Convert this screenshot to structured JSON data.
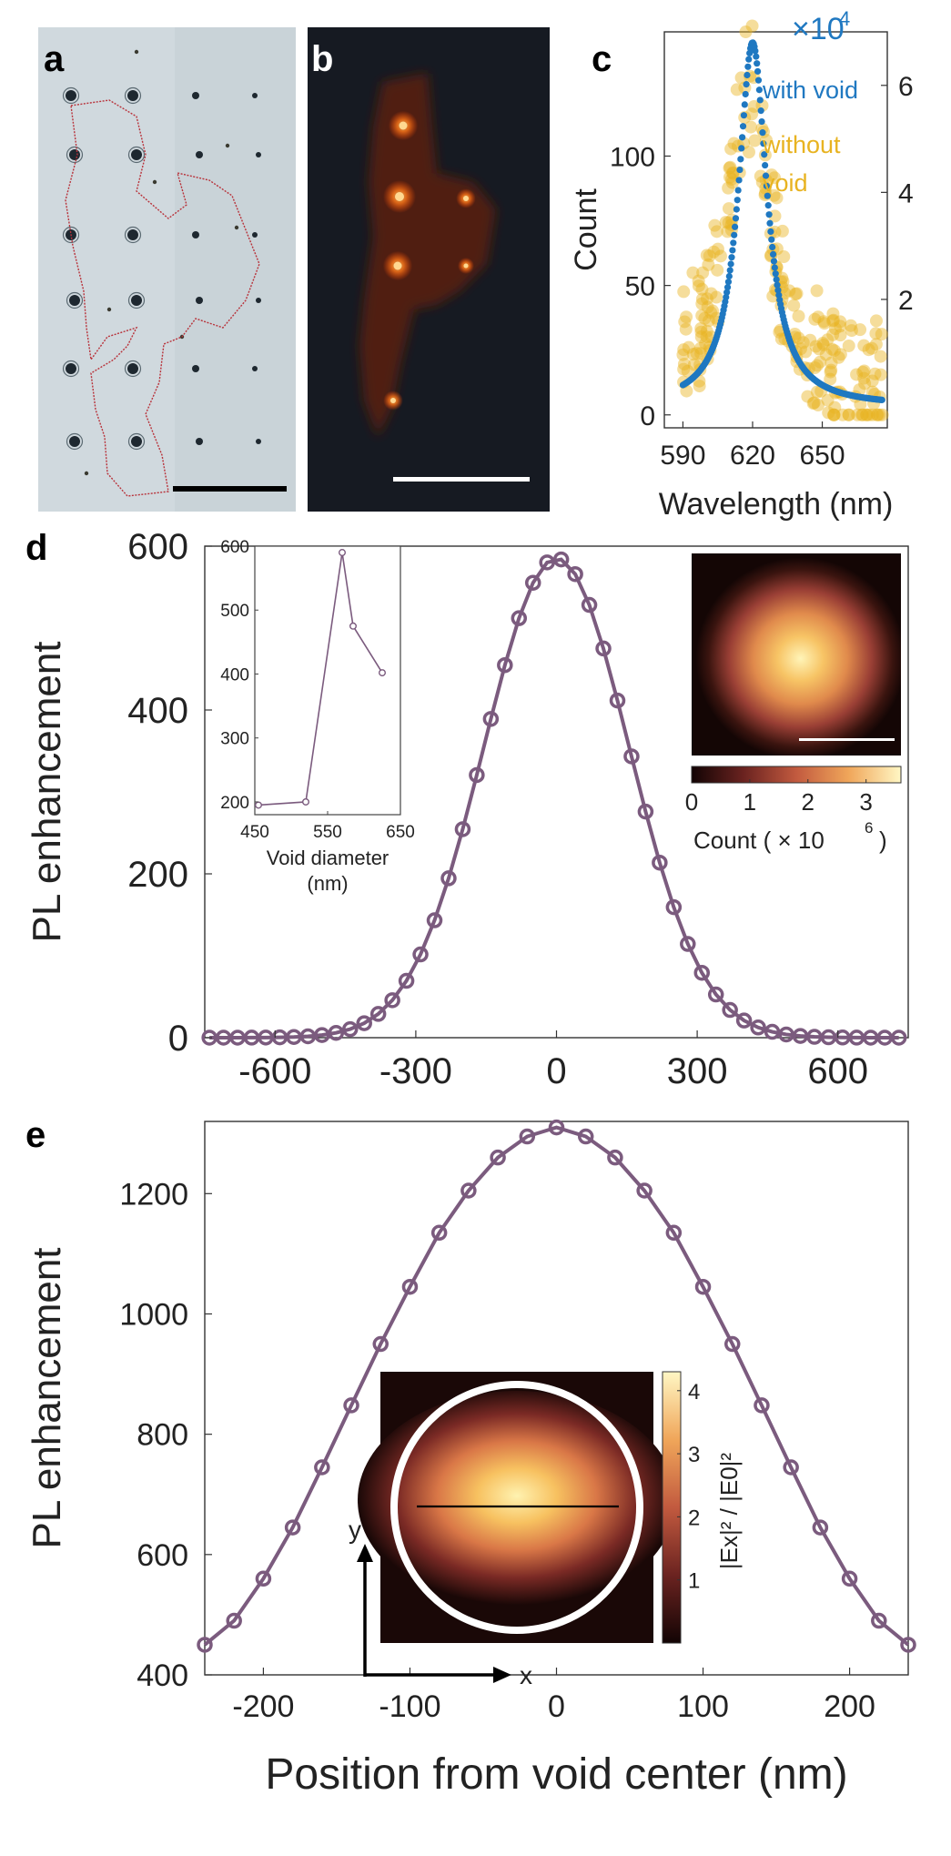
{
  "figure": {
    "panel_letters": [
      "a",
      "b",
      "c",
      "d",
      "e"
    ],
    "colors": {
      "curve": "#7b5b7e",
      "with_void": "#1f78c1",
      "without_void": "#e8b321",
      "axis_right": "#1f78c1",
      "axis_left_c": "#e8b321"
    }
  },
  "panel_a": {
    "description_icon": "microscope-brightfield-image"
  },
  "panel_b": {
    "description_icon": "fluorescence-image"
  },
  "chart_data": [
    {
      "id": "c",
      "type": "scatter",
      "xlabel": "Wavelength (nm)",
      "ylabel": "Count",
      "xlim": [
        582,
        678
      ],
      "ylim": [
        -5,
        148
      ],
      "xticks": [
        "590",
        "620",
        "650"
      ],
      "xtick_values": [
        590,
        620,
        650
      ],
      "yticks": [
        "0",
        "50",
        "100"
      ],
      "ytick_values": [
        0,
        50,
        100
      ],
      "y2lim": [
        -0.4,
        7.0
      ],
      "y2ticks": [
        "2",
        "4",
        "6"
      ],
      "y2tick_values": [
        2,
        4,
        6
      ],
      "y2_multiplier": "×10",
      "y2_exponent": "4",
      "legend": {
        "with_void": "with void",
        "without_void_1": "without",
        "without_void_2": "void"
      },
      "series": [
        {
          "name": "with void",
          "axis": "right",
          "model": "lorentzian",
          "center": 620,
          "gamma": 7.5,
          "peak": 6.8,
          "x_start": 590,
          "x_end": 676
        },
        {
          "name": "without void",
          "axis": "left",
          "model": "noisy-lorentzian",
          "center": 618,
          "gamma": 11,
          "peak": 120,
          "x_start": 590,
          "x_end": 676
        }
      ]
    },
    {
      "id": "d",
      "type": "line",
      "xlabel": "",
      "ylabel": "PL enhancement",
      "xlim": [
        -750,
        750
      ],
      "ylim": [
        0,
        600
      ],
      "xticks": [
        "-600",
        "-300",
        "0",
        "300",
        "600"
      ],
      "xtick_values": [
        -600,
        -300,
        0,
        300,
        600
      ],
      "yticks": [
        "0",
        "200",
        "400",
        "600"
      ],
      "ytick_values": [
        0,
        200,
        400,
        600
      ],
      "series": [
        {
          "name": "PL enhancement",
          "model": "gaussian",
          "peak": 585,
          "sigma": 155,
          "x_start": -740,
          "x_step": 30,
          "n": 50
        }
      ],
      "inset_left": {
        "xlabel_1": "Void diameter",
        "xlabel_2": "(nm)",
        "xlim": [
          450,
          650
        ],
        "ylim": [
          180,
          600
        ],
        "xticks": [
          "450",
          "550",
          "650"
        ],
        "xtick_values": [
          450,
          550,
          650
        ],
        "yticks": [
          "200",
          "300",
          "400",
          "500",
          "600"
        ],
        "ytick_values": [
          200,
          300,
          400,
          500,
          600
        ],
        "x": [
          455,
          520,
          570,
          585,
          625
        ],
        "y": [
          195,
          200,
          590,
          475,
          402
        ]
      },
      "inset_right": {
        "colorbar_ticks": [
          "0",
          "1",
          "2",
          "3"
        ],
        "colorbar_tick_values": [
          0,
          1,
          2,
          3
        ],
        "colorbar_max": 3.6,
        "colorbar_label": "Count ( × 10",
        "colorbar_label_exp": "6",
        "colorbar_label_end": ")"
      }
    },
    {
      "id": "e",
      "type": "line",
      "xlabel": "Position from void center (nm)",
      "ylabel": "PL enhancement",
      "xlim": [
        -240,
        240
      ],
      "ylim": [
        400,
        1320
      ],
      "xticks": [
        "-200",
        "-100",
        "0",
        "100",
        "200"
      ],
      "xtick_values": [
        -200,
        -100,
        0,
        100,
        200
      ],
      "yticks": [
        "400",
        "600",
        "800",
        "1000",
        "1200"
      ],
      "ytick_values": [
        400,
        600,
        800,
        1000,
        1200
      ],
      "x": [
        -240,
        -220,
        -200,
        -180,
        -160,
        -140,
        -120,
        -100,
        -80,
        -60,
        -40,
        -20,
        0,
        20,
        40,
        60,
        80,
        100,
        120,
        140,
        160,
        180,
        200,
        220,
        240
      ],
      "y": [
        450,
        490,
        560,
        645,
        745,
        848,
        950,
        1045,
        1135,
        1205,
        1260,
        1295,
        1310,
        1295,
        1260,
        1205,
        1135,
        1045,
        950,
        848,
        745,
        645,
        560,
        490,
        450
      ],
      "inset": {
        "colorbar_ticks": [
          "1",
          "2",
          "3",
          "4"
        ],
        "colorbar_tick_values": [
          1,
          2,
          3,
          4
        ],
        "colorbar_max": 4.3,
        "colorbar_label": "|Ex|² / |E0|²",
        "axis_x": "x",
        "axis_y": "y"
      }
    }
  ]
}
